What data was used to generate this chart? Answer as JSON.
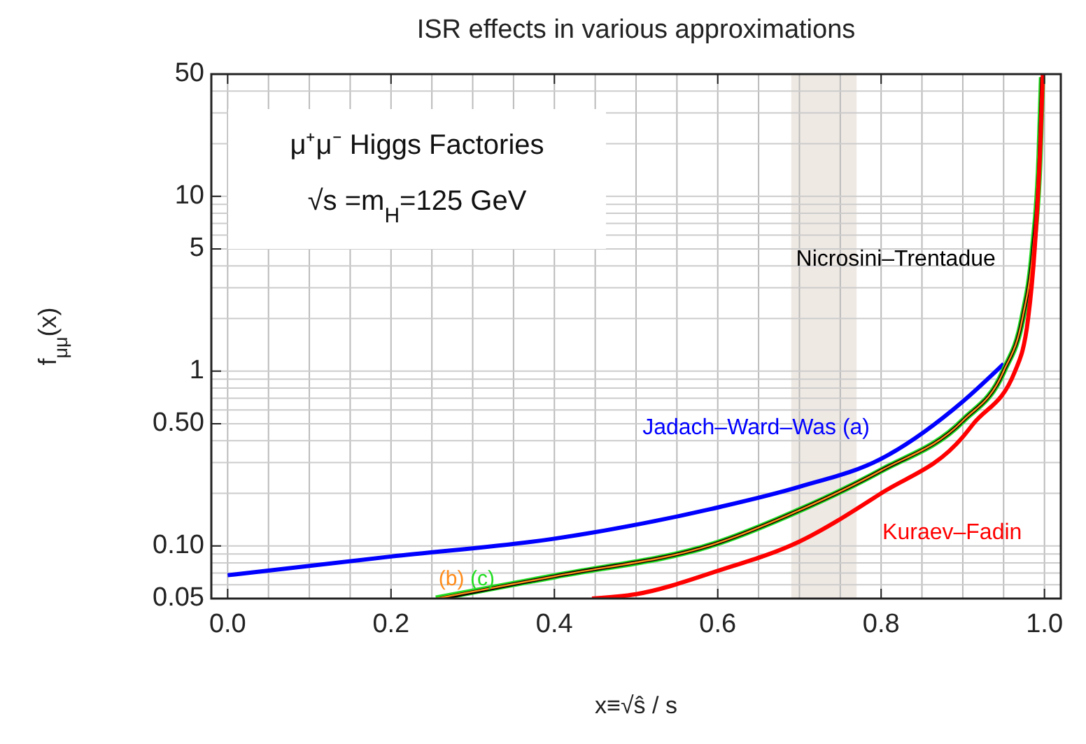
{
  "chart_data": {
    "type": "line",
    "title": "ISR effects in various approximations",
    "xlabel": "x≡√ŝ / s",
    "ylabel": "f$_{μμ}$(x)",
    "log": "y",
    "grid": true,
    "xlim": [
      -0.02,
      1.02
    ],
    "xticks": [
      {
        "value": 0,
        "label": "0.0"
      },
      {
        "value": 0.2,
        "label": "0.2"
      },
      {
        "value": 0.4,
        "label": "0.4"
      },
      {
        "value": 0.6,
        "label": "0.6"
      },
      {
        "value": 0.8,
        "label": "0.8"
      },
      {
        "value": 1,
        "label": "1.0"
      }
    ],
    "ylim": [
      0.05,
      50
    ],
    "yticks": [
      {
        "value": 0.05,
        "label": "0.05"
      },
      {
        "value": 0.1,
        "label": "0.10"
      },
      {
        "value": 0.5,
        "label": "0.50"
      },
      1,
      5,
      10,
      50
    ],
    "bands": [
      {
        "axis": "x",
        "from": 0.69,
        "to": 0.77,
        "color": "#efe9e4"
      }
    ],
    "annotations": [
      "μ⁺μ⁻ Higgs Factories",
      "√s =m$_{H}$=125 GeV"
    ],
    "series": [
      {
        "name": "Jadach–Ward–Was (a)",
        "color": "#0000ff",
        "x": [
          0,
          0.2,
          0.4,
          0.6,
          0.7,
          0.8,
          0.9,
          0.95
        ],
        "values": [
          0.068,
          0.087,
          0.11,
          0.166,
          0.218,
          0.315,
          0.67,
          1.1
        ]
      },
      {
        "name": "(b)",
        "color": "#ff8c1a",
        "x": [
          0.255,
          0.4,
          0.6,
          0.7,
          0.8,
          0.9,
          0.95,
          0.973,
          0.986,
          0.994,
          0.997
        ],
        "values": [
          0.05,
          0.067,
          0.104,
          0.16,
          0.27,
          0.52,
          1,
          2,
          5,
          17,
          48
        ]
      },
      {
        "name": "(c)",
        "color": "#22dd22",
        "x": [
          0.255,
          0.4,
          0.6,
          0.7,
          0.8,
          0.9,
          0.95,
          0.973,
          0.986,
          0.994,
          0.997
        ],
        "values": [
          0.05,
          0.067,
          0.104,
          0.16,
          0.27,
          0.52,
          1,
          2,
          5,
          17,
          48
        ]
      },
      {
        "name": "Nicrosini–Trentadue",
        "color": "#000000",
        "x": [
          0.26,
          0.4,
          0.6,
          0.7,
          0.8,
          0.9,
          0.95,
          0.973,
          0.986,
          0.994,
          0.997
        ],
        "values": [
          0.05,
          0.067,
          0.104,
          0.16,
          0.27,
          0.52,
          1,
          2,
          5,
          17,
          48
        ]
      },
      {
        "name": "Kuraev–Fadin",
        "color": "#ff0000",
        "x": [
          0.446,
          0.5,
          0.6,
          0.7,
          0.8,
          0.9,
          0.913,
          0.964,
          0.98,
          0.988,
          0.995,
          0.998
        ],
        "values": [
          0.05,
          0.053,
          0.072,
          0.106,
          0.2,
          0.42,
          0.5,
          1,
          2,
          5,
          20,
          50
        ]
      }
    ]
  }
}
